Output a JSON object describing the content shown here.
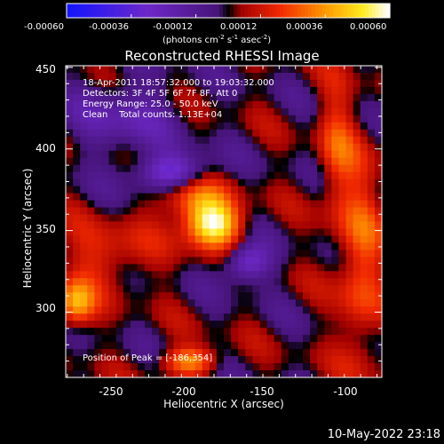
{
  "colorbar": {
    "ticks": [
      "-0.00060",
      "-0.00036",
      "-0.00012",
      "0.00012",
      "0.00036",
      "0.00060"
    ],
    "tick_values": [
      -0.0006,
      -0.00036,
      -0.00012,
      0.00012,
      0.00036,
      0.0006
    ],
    "units_prefix": "(photons cm",
    "units_exp1": "-2",
    "units_mid1": " s",
    "units_exp2": "-1",
    "units_mid2": " asec",
    "units_exp3": "-2",
    "units_suffix": ")",
    "colormap": "rhessi-blue-red-yellow"
  },
  "chart_data": {
    "type": "heatmap",
    "title": "Reconstructed RHESSI Image",
    "xlabel": "Heliocentric X (arcsec)",
    "ylabel": "Heliocentric Y (arcsec)",
    "xlim": [
      -276,
      -82
    ],
    "ylim": [
      260,
      451
    ],
    "x_ticks": [
      "-250",
      "-200",
      "-150",
      "-100"
    ],
    "x_tick_values": [
      -250,
      -200,
      -150,
      -100
    ],
    "y_ticks": [
      "300",
      "350",
      "400",
      "450"
    ],
    "y_tick_values": [
      300,
      350,
      400,
      450
    ],
    "value_range": [
      -0.0006,
      0.0006
    ],
    "peak_position": [
      -186,
      354
    ],
    "sources": [
      {
        "x": -186,
        "y": 354,
        "value": 0.0006,
        "sx": 12,
        "sy": 10
      },
      {
        "x": -200,
        "y": 372,
        "value": 0.0003,
        "sx": 14,
        "sy": 10
      },
      {
        "x": -270,
        "y": 305,
        "value": 0.0004,
        "sx": 8,
        "sy": 10
      },
      {
        "x": -200,
        "y": 270,
        "value": 0.00035,
        "sx": 12,
        "sy": 6
      },
      {
        "x": -95,
        "y": 330,
        "value": 0.00025,
        "sx": 10,
        "sy": 45
      },
      {
        "x": -110,
        "y": 400,
        "value": 0.0002,
        "sx": 8,
        "sy": 30
      },
      {
        "x": -250,
        "y": 335,
        "value": 0.00018,
        "sx": 20,
        "sy": 14
      },
      {
        "x": -210,
        "y": 385,
        "value": -0.0004,
        "sx": 16,
        "sy": 8
      },
      {
        "x": -165,
        "y": 330,
        "value": -0.00035,
        "sx": 10,
        "sy": 8
      },
      {
        "x": -240,
        "y": 420,
        "value": -0.0002,
        "sx": 22,
        "sy": 16
      }
    ]
  },
  "info": {
    "line1": "18-Apr-2011 18:57:32.000 to 19:03:32.000",
    "line2": "Detectors: 3F 4F 5F 6F 7F 8F, Att 0",
    "line3": "Energy Range: 25.0 - 50.0 keV",
    "line4": "Clean    Total counts: 1.13E+04"
  },
  "peak_label": "Position of Peak = [-186,354]",
  "timestamp": "10-May-2022 23:18"
}
